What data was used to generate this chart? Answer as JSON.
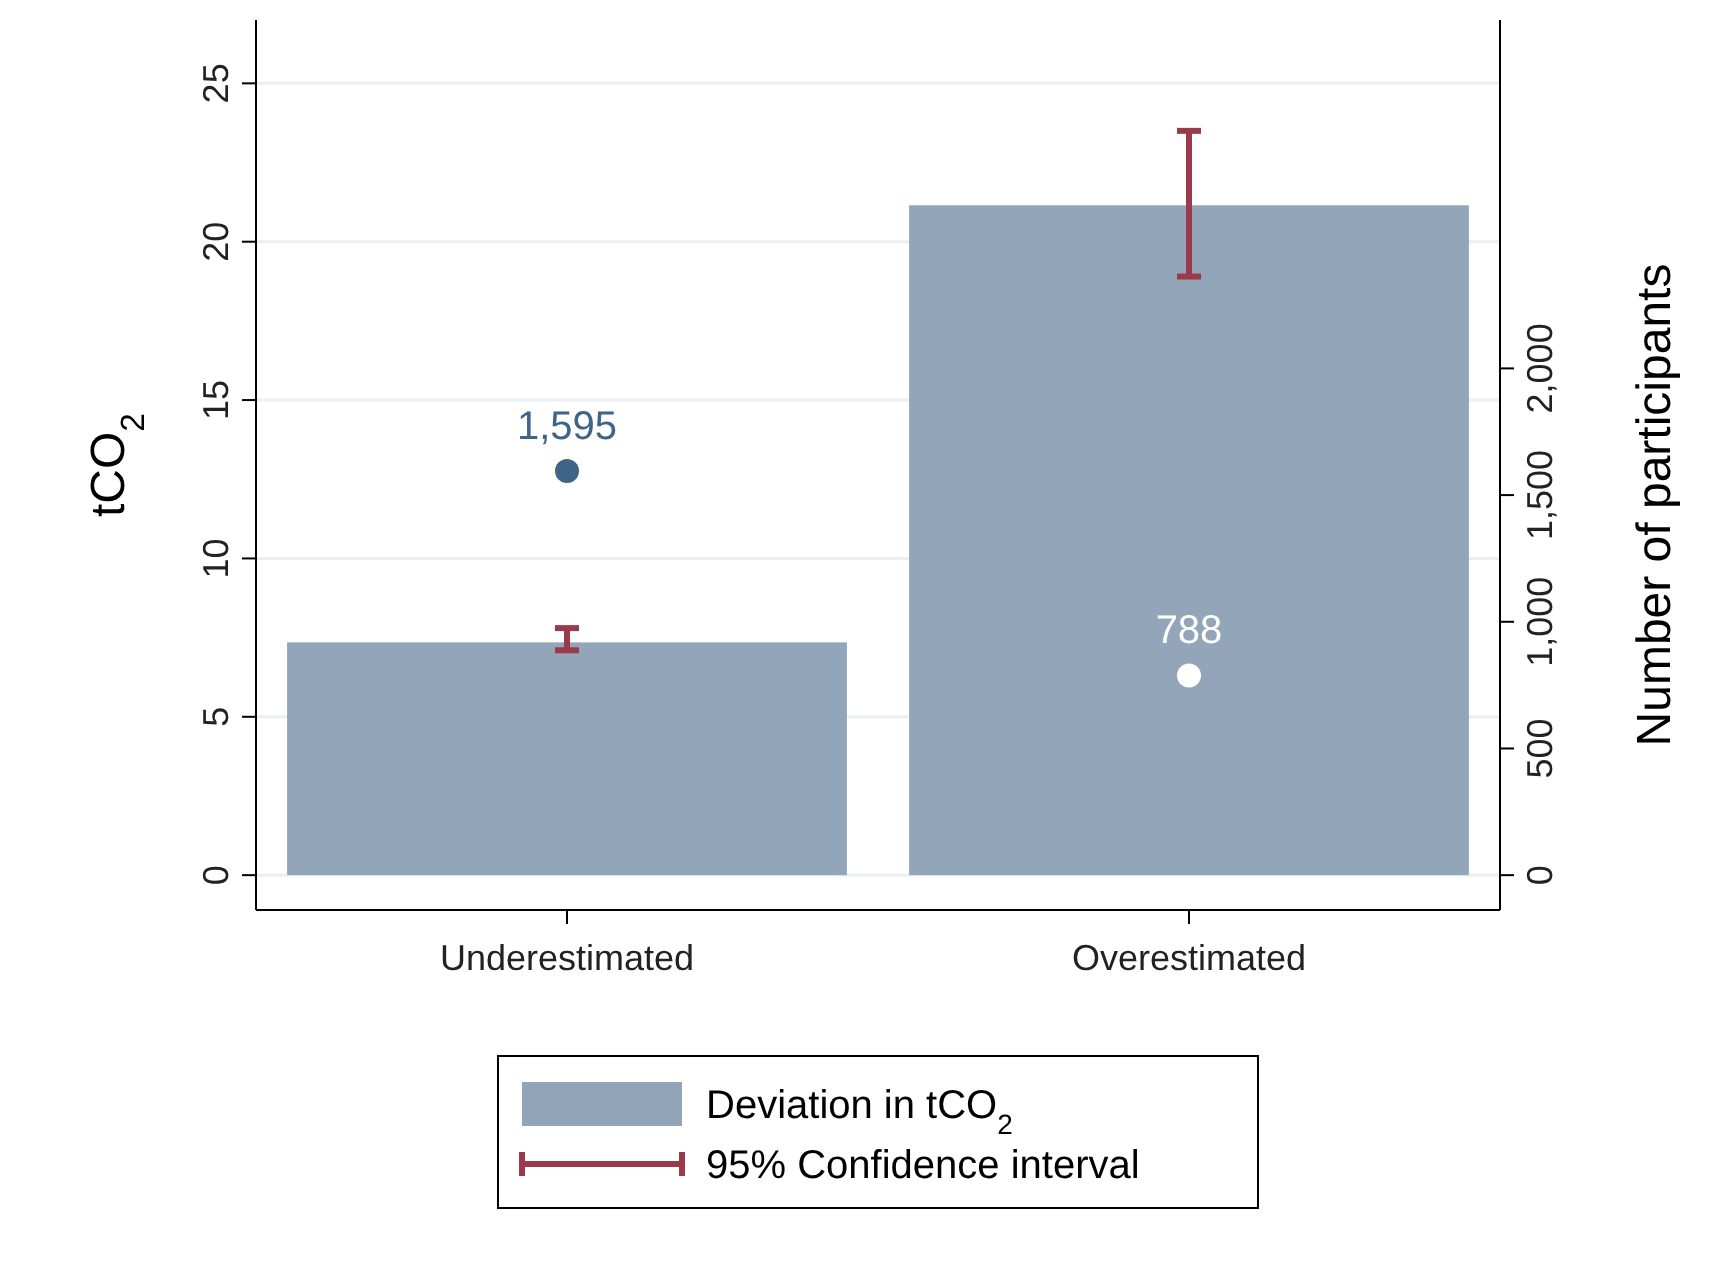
{
  "chart_data": {
    "type": "bar",
    "categories": [
      "Underestimated",
      "Overestimated"
    ],
    "ylabel": "tCO$_{2}$",
    "y2label": "Number of participants",
    "ylim": [
      -1.1,
      27
    ],
    "yticks": [
      0,
      5,
      10,
      15,
      20,
      25
    ],
    "y2lim": [
      -137.5,
      3375
    ],
    "y2ticks": [
      0,
      500,
      {
        "value": 1000,
        "label": "1,000"
      },
      {
        "value": 1500,
        "label": "1,500"
      },
      {
        "value": 2000,
        "label": "2,000"
      }
    ],
    "grid": "y",
    "legend": "bottom",
    "annotations": [
      "95% Confidence interval"
    ],
    "series": [
      {
        "name": "Deviation in tCO$_{2}$",
        "color": "#93a5b8",
        "values": [
          7.35,
          21.15
        ],
        "errors": [
          [
            7.1,
            7.8
          ],
          [
            18.9,
            23.5
          ]
        ]
      },
      {
        "type": "scatter",
        "axis": "y2",
        "colors": [
          "#3e6587",
          "#ffffff"
        ],
        "values": [
          1595,
          788
        ],
        "value_labels": [
          "1,595",
          "788"
        ]
      }
    ]
  }
}
